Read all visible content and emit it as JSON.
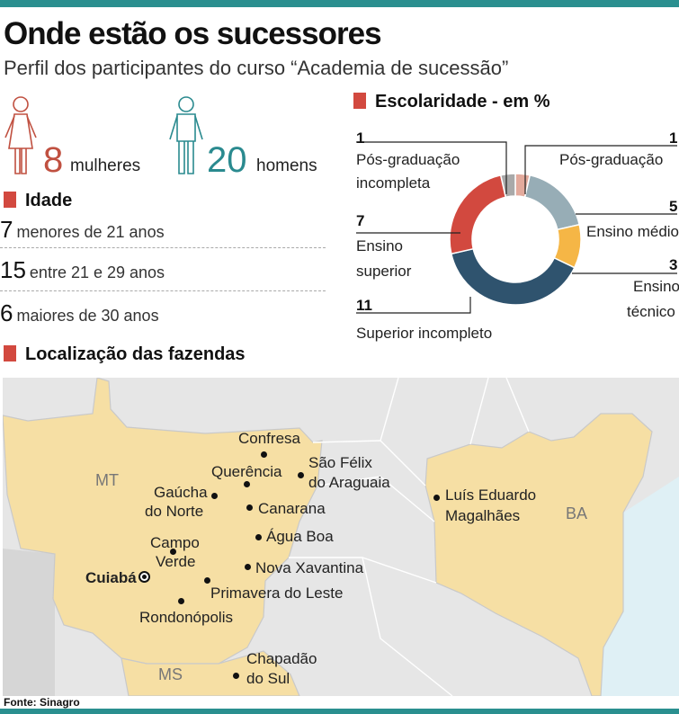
{
  "header": {
    "title": "Onde estão os sucessores",
    "subtitle": "Perfil dos participantes do curso “Academia de sucessão”"
  },
  "participants": {
    "women_count": "8",
    "women_label": "mulheres",
    "men_count": "20",
    "men_label": "homens"
  },
  "age": {
    "title": "Idade",
    "rows": [
      {
        "count": "7",
        "label": "menores de 21 anos"
      },
      {
        "count": "15",
        "label": "entre 21 e 29 anos"
      },
      {
        "count": "6",
        "label": "maiores de 30 anos"
      }
    ]
  },
  "chart_data": {
    "type": "pie",
    "title": "Escolaridade - em %",
    "categories": [
      "Pós-graduação",
      "Ensino médio",
      "Ensino técnico",
      "Superior incompleto",
      "Ensino superior",
      "Pós-graduação incompleta"
    ],
    "values": [
      1,
      5,
      3,
      11,
      7,
      1
    ],
    "value_labels": [
      "1",
      "5",
      "3",
      "11",
      "7",
      "1"
    ],
    "labels": {
      "pos": "Pós-graduação",
      "medio": "Ensino médio",
      "tecnico_1": "Ensino",
      "tecnico_2": "técnico",
      "sup_inc": "Superior incompleto",
      "superior_1": "Ensino",
      "superior_2": "superior",
      "pos_inc_1": "Pós-graduação",
      "pos_inc_2": "incompleta"
    },
    "colors": [
      "#e3aa9c",
      "#97adb6",
      "#f5b646",
      "#2f536e",
      "#d2493f",
      "#a9a9a9"
    ]
  },
  "location": {
    "title": "Localização das fazendas",
    "states": {
      "mt": "MT",
      "ms": "MS",
      "ba": "BA"
    },
    "cities": {
      "confresa": "Confresa",
      "querencia": "Querência",
      "sao_felix_1": "São Félix",
      "sao_felix_2": "do Araguaia",
      "gaucha_1": "Gaúcha",
      "gaucha_2": "do Norte",
      "canarana": "Canarana",
      "agua_boa": "Água Boa",
      "campo_verde_1": "Campo",
      "campo_verde_2": "Verde",
      "cuiaba": "Cuiabá",
      "nova_xavantina": "Nova Xavantina",
      "primavera": "Primavera do Leste",
      "rondonopolis": "Rondonópolis",
      "chapadao_1": "Chapadão",
      "chapadao_2": "do Sul",
      "luis_1": "Luís Eduardo",
      "luis_2": "Magalhães"
    }
  },
  "footer": {
    "source": "Fonte: Sinagro"
  },
  "colors": {
    "accent": "#d2493f",
    "bar": "#2a8f8f",
    "women": "#c05040",
    "men": "#2a8a8f",
    "land": "#f6dfa4"
  }
}
